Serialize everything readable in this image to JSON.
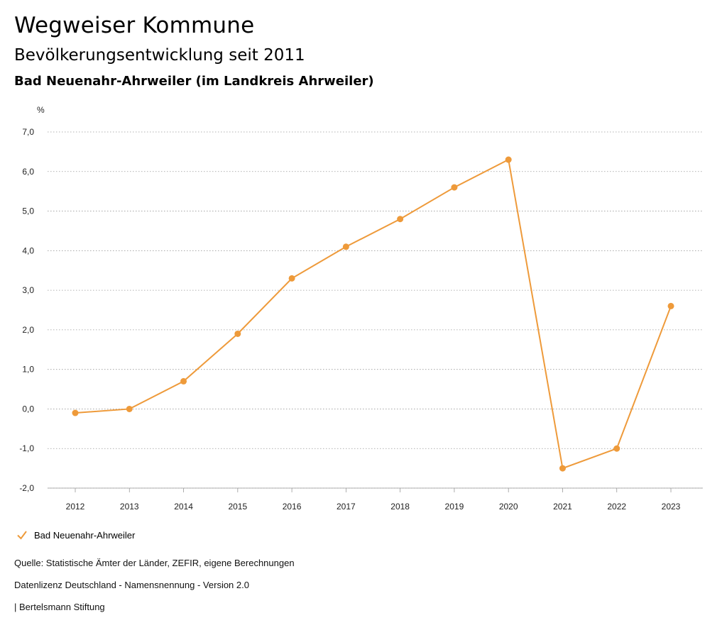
{
  "header": {
    "title": "Wegweiser Kommune",
    "subtitle": "Bevölkerungsentwicklung seit 2011",
    "region": "Bad Neuenahr-Ahrweiler (im Landkreis Ahrweiler)"
  },
  "chart_data": {
    "type": "line",
    "title": "Bevölkerungsentwicklung seit 2011",
    "ylabel": "%",
    "xlabel": "",
    "categories": [
      "2012",
      "2013",
      "2014",
      "2015",
      "2016",
      "2017",
      "2018",
      "2019",
      "2020",
      "2021",
      "2022",
      "2023"
    ],
    "yticks": [
      "7,0",
      "6,0",
      "5,0",
      "4,0",
      "3,0",
      "2,0",
      "1,0",
      "0,0",
      "-1,0",
      "-2,0"
    ],
    "ylim": [
      -2,
      7
    ],
    "grid": true,
    "series": [
      {
        "name": "Bad Neuenahr-Ahrweiler",
        "color": "#ee9a3a",
        "values": [
          -0.1,
          0.0,
          0.7,
          1.9,
          3.3,
          4.1,
          4.8,
          5.6,
          6.3,
          -1.5,
          -1.0,
          2.6
        ]
      }
    ],
    "legend_position": "bottom-left"
  },
  "legend": {
    "label": "Bad Neuenahr-Ahrweiler"
  },
  "footer": {
    "source": "Quelle: Statistische Ämter der Länder, ZEFIR, eigene Berechnungen",
    "license": "Datenlizenz Deutschland - Namensnennung - Version 2.0",
    "publisher": "| Bertelsmann Stiftung"
  }
}
